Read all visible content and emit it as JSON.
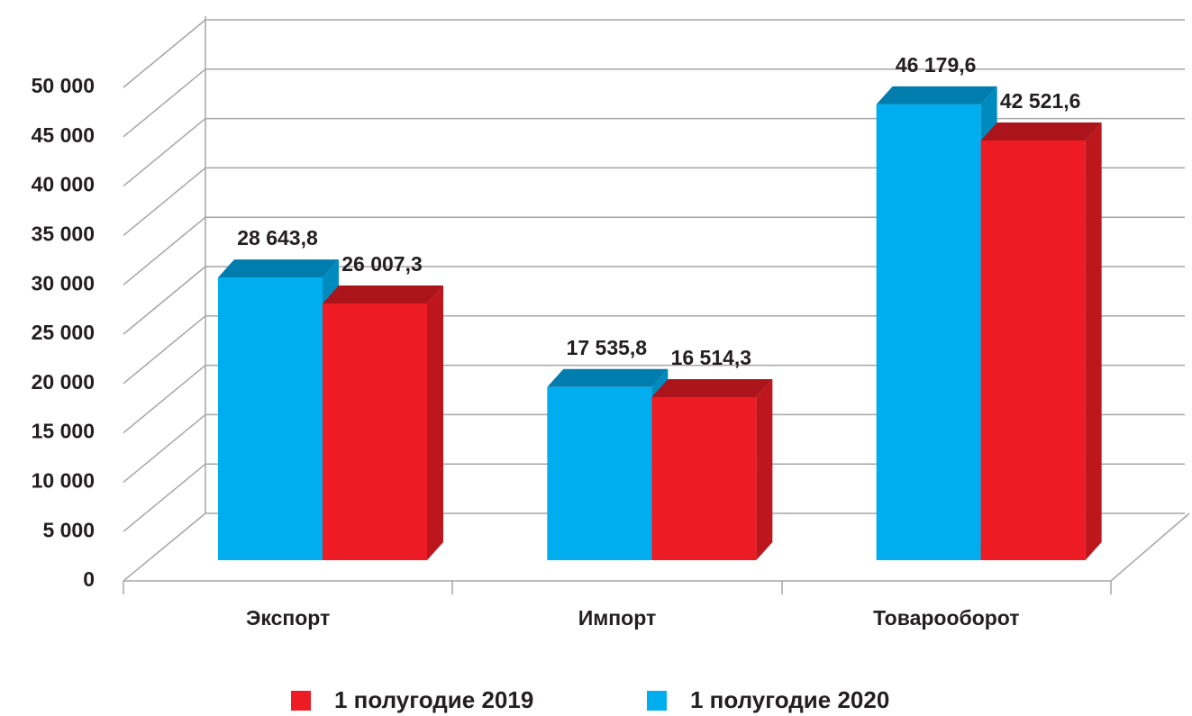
{
  "chart_data": {
    "type": "bar3d",
    "categories": [
      "Экспорт",
      "Импорт",
      "Товарооборот"
    ],
    "series": [
      {
        "name": "1 полугодие 2019",
        "color": "#ed1c24",
        "values": [
          26007.3,
          16514.3,
          42521.6
        ],
        "value_labels": [
          "26 007,3",
          "16 514,3",
          "42 521,6"
        ]
      },
      {
        "name": "1 полугодие 2020",
        "color": "#00aeef",
        "values": [
          28643.8,
          17535.8,
          46179.6
        ],
        "value_labels": [
          "28 643,8",
          "17 535,8",
          "46 179,6"
        ]
      }
    ],
    "ylim": [
      0,
      50000
    ],
    "yticks": [
      0,
      {
        "value": 5000,
        "label": "5 000"
      },
      {
        "value": 10000,
        "label": "10 000"
      },
      {
        "value": 15000,
        "label": "15 000"
      },
      {
        "value": 20000,
        "label": "20 000"
      },
      {
        "value": 25000,
        "label": "25 000"
      },
      {
        "value": 30000,
        "label": "30 000"
      },
      {
        "value": 35000,
        "label": "35 000"
      },
      {
        "value": 40000,
        "label": "40 000"
      },
      {
        "value": 45000,
        "label": "45 000"
      },
      {
        "value": 50000,
        "label": "50 000"
      }
    ],
    "grid": true,
    "legend": "bottom"
  }
}
